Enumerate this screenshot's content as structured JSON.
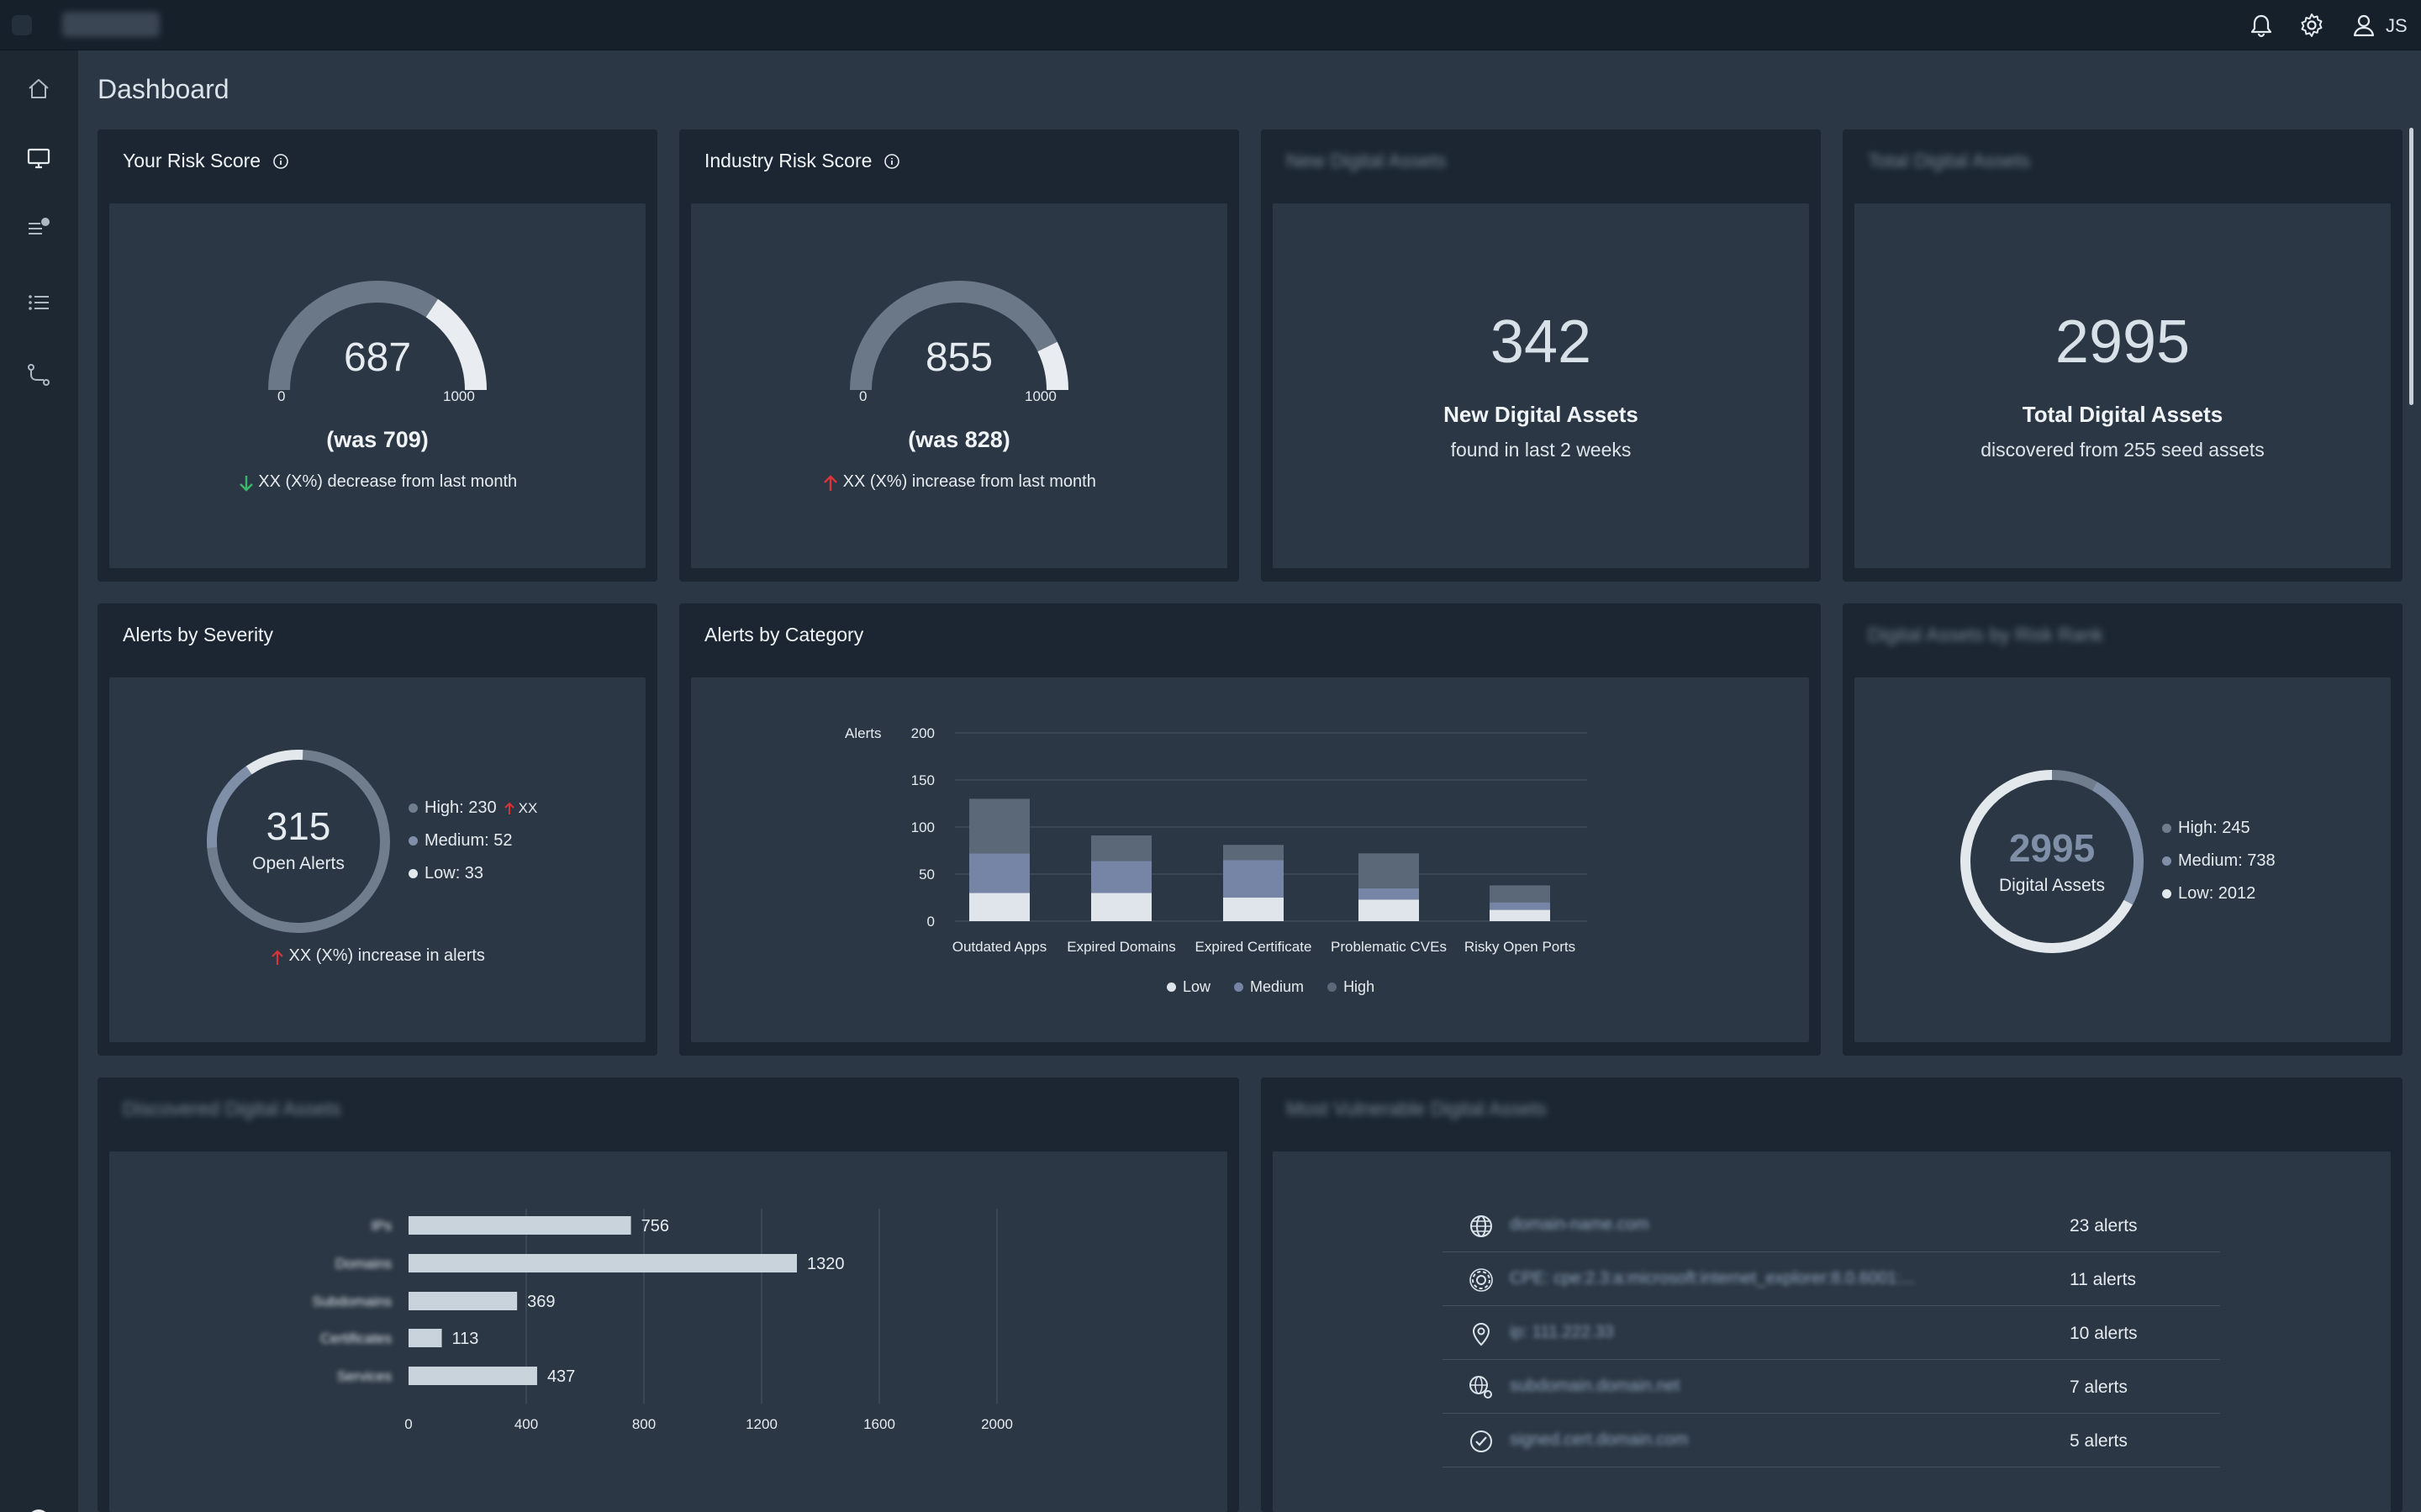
{
  "app": {
    "brand": "brand",
    "user_initials": "JS"
  },
  "page_title": "Dashboard",
  "risk_score": {
    "title": "Your Risk Score",
    "value": "687",
    "fraction": 0.687,
    "min_label": "0",
    "max_label": "1000",
    "was": "(was 709)",
    "change": "XX (X%) decrease from last month",
    "direction": "down"
  },
  "industry_score": {
    "title": "Industry Risk Score",
    "value": "855",
    "fraction": 0.855,
    "min_label": "0",
    "max_label": "1000",
    "was": "(was 828)",
    "change": "XX (X%) increase from last month",
    "direction": "up"
  },
  "new_assets": {
    "title": "New Digital Assets",
    "value": "342",
    "label": "New Digital Assets",
    "sub": "found in last 2 weeks"
  },
  "total_assets": {
    "title": "Total Digital Assets",
    "value": "2995",
    "label": "Total Digital Assets",
    "sub": "discovered from 255 seed assets"
  },
  "alerts_severity": {
    "title": "Alerts by Severity",
    "total": "315",
    "total_label": "Open Alerts",
    "items": [
      {
        "label": "High: 230",
        "value": 230,
        "color": "#6f7d8c",
        "badge": "XX"
      },
      {
        "label": "Medium: 52",
        "value": 52,
        "color": "#7f8fa8"
      },
      {
        "label": "Low: 33",
        "value": 33,
        "color": "#e3e8ec"
      }
    ],
    "change": "XX (X%) increase in alerts"
  },
  "alerts_category": {
    "title": "Alerts by Category",
    "legend": [
      {
        "label": "Low",
        "color": "#dfe5ea"
      },
      {
        "label": "Medium",
        "color": "#7685a6"
      },
      {
        "label": "High",
        "color": "#5a6878"
      }
    ]
  },
  "chart_data": [
    {
      "type": "bar",
      "stacked": true,
      "ylabel": "Alerts",
      "ylim": [
        0,
        200
      ],
      "yticks": [
        0,
        50,
        100,
        150,
        200
      ],
      "categories": [
        "Outdated Apps",
        "Expired Domains",
        "Expired Certificate",
        "Problematic CVEs",
        "Risky Open Ports"
      ],
      "series": [
        {
          "name": "Low",
          "color": "#dfe5ea",
          "values": [
            30,
            30,
            25,
            23,
            12
          ]
        },
        {
          "name": "Medium",
          "color": "#7685a6",
          "values": [
            42,
            34,
            40,
            12,
            8
          ]
        },
        {
          "name": "High",
          "color": "#5a6878",
          "values": [
            58,
            27,
            16,
            37,
            18
          ]
        }
      ],
      "legend": "bottom"
    },
    {
      "type": "bar",
      "orientation": "horizontal",
      "categories": [
        "IPs",
        "Domains",
        "Subdomains",
        "Certificates",
        "Services"
      ],
      "values": [
        756,
        1320,
        369,
        113,
        437
      ],
      "xticks": [
        0,
        400,
        800,
        1200,
        1600,
        2000
      ],
      "xlim": [
        0,
        2000
      ]
    }
  ],
  "assets_risk": {
    "title": "Digital Assets by Risk Rank",
    "total": "2995",
    "total_label": "Digital Assets",
    "items": [
      {
        "label": "High: 245",
        "value": 245,
        "color": "#6f7d8c"
      },
      {
        "label": "Medium: 738",
        "value": 738,
        "color": "#7f8fa8"
      },
      {
        "label": "Low: 2012",
        "value": 2012,
        "color": "#e3e8ec"
      }
    ]
  },
  "discovered": {
    "title": "Discovered Digital Assets",
    "value_labels": [
      "756",
      "1320",
      "369",
      "113",
      "437"
    ]
  },
  "vulnerable": {
    "title": "Most Vulnerable Digital Assets",
    "rows": [
      {
        "icon": "globe-icon",
        "name": "domain-name.com",
        "count": "23 alerts"
      },
      {
        "icon": "gear-icon",
        "name": "CPE: cpe:2.3:a:microsoft:internet_explorer:8.0.6001:...",
        "count": "11 alerts"
      },
      {
        "icon": "location-pin-icon",
        "name": "ip: 111.222.33",
        "count": "10 alerts"
      },
      {
        "icon": "subdomain-globe-icon",
        "name": "subdomain.domain.net",
        "count": "7 alerts"
      },
      {
        "icon": "certificate-check-icon",
        "name": "signed.cert.domain.com",
        "count": "5 alerts"
      }
    ]
  }
}
